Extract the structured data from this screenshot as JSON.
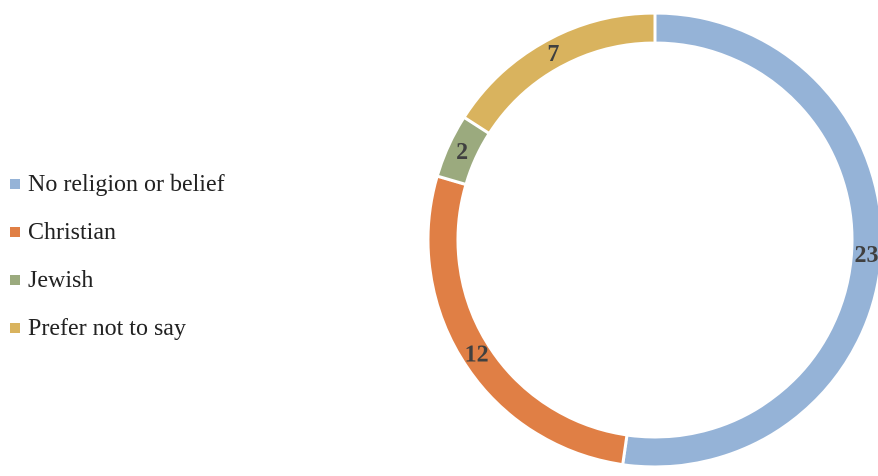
{
  "chart_data": {
    "type": "pie",
    "style": "doughnut",
    "categories": [
      "No religion or belief",
      "Christian",
      "Jewish",
      "Prefer not to say"
    ],
    "values": [
      23,
      12,
      2,
      7
    ],
    "colors": [
      "#95B3D7",
      "#E07F45",
      "#9BAA7E",
      "#D9B35E"
    ],
    "data_labels": [
      "23",
      "12",
      "2",
      "7"
    ],
    "legend_position": "left",
    "start_angle": "top",
    "direction": "clockwise",
    "title": ""
  }
}
